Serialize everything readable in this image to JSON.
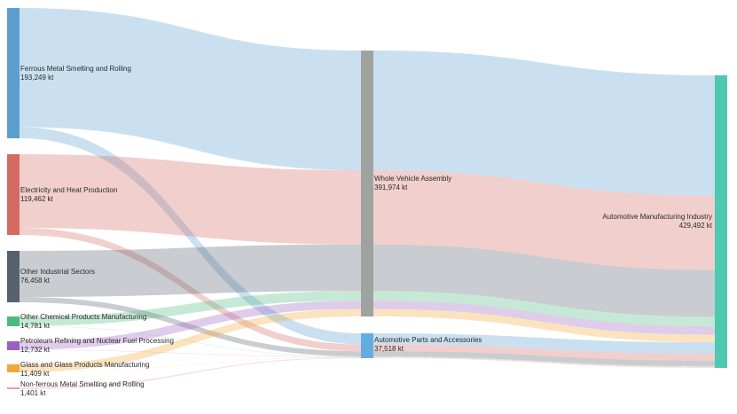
{
  "chart_data": {
    "type": "sankey",
    "unit": "kt",
    "nodes": [
      {
        "id": "ferrous",
        "name": "Ferrous Metal Smelting and Rolling",
        "value_text": "193,249",
        "color": "#5b9fd0"
      },
      {
        "id": "electricity",
        "name": "Electricity and Heat Production",
        "value_text": "119,462",
        "color": "#d46a60"
      },
      {
        "id": "other_ind",
        "name": "Other Industrial Sectors",
        "value_text": "76,458",
        "color": "#57606e"
      },
      {
        "id": "chem",
        "name": "Other Chemical Products Manufacturing",
        "value_text": "14,781",
        "color": "#4dbb7c"
      },
      {
        "id": "petro",
        "name": "Petroleum Refining and Nuclear Fuel Processing",
        "value_text": "12,732",
        "color": "#9b5fc0"
      },
      {
        "id": "glass",
        "name": "Glass and Glass Products Manufacturing",
        "value_text": "11,409",
        "color": "#f2a73b"
      },
      {
        "id": "nonferrous",
        "name": "Non-ferrous Metal Smelting and Rolling",
        "value_text": "1,401",
        "color": "#e9a090"
      },
      {
        "id": "assembly",
        "name": "Whole Vehicle Assembly",
        "value_text": "391,974",
        "color": "#9ea3a0"
      },
      {
        "id": "parts",
        "name": "Automotive Parts and Accessories",
        "value_text": "37,518",
        "color": "#64ace0"
      },
      {
        "id": "industry",
        "name": "Automotive Manufacturing Industry",
        "value_text": "429,492",
        "color": "#4cc9b0"
      }
    ],
    "links": [
      {
        "source": "ferrous",
        "target": "assembly",
        "value": 176600
      },
      {
        "source": "ferrous",
        "target": "parts",
        "value": 16649
      },
      {
        "source": "electricity",
        "target": "assembly",
        "value": 109200
      },
      {
        "source": "electricity",
        "target": "parts",
        "value": 10262
      },
      {
        "source": "other_ind",
        "target": "assembly",
        "value": 68600
      },
      {
        "source": "other_ind",
        "target": "parts",
        "value": 7858
      },
      {
        "source": "chem",
        "target": "assembly",
        "value": 14200
      },
      {
        "source": "chem",
        "target": "parts",
        "value": 581
      },
      {
        "source": "petro",
        "target": "assembly",
        "value": 12250
      },
      {
        "source": "petro",
        "target": "parts",
        "value": 482
      },
      {
        "source": "glass",
        "target": "assembly",
        "value": 11000
      },
      {
        "source": "glass",
        "target": "parts",
        "value": 409
      },
      {
        "source": "nonferrous",
        "target": "assembly",
        "value": 124
      },
      {
        "source": "nonferrous",
        "target": "parts",
        "value": 1277
      },
      {
        "source": "assembly",
        "target": "industry",
        "value": 391974
      },
      {
        "source": "parts",
        "target": "industry",
        "value": 37518
      }
    ]
  }
}
